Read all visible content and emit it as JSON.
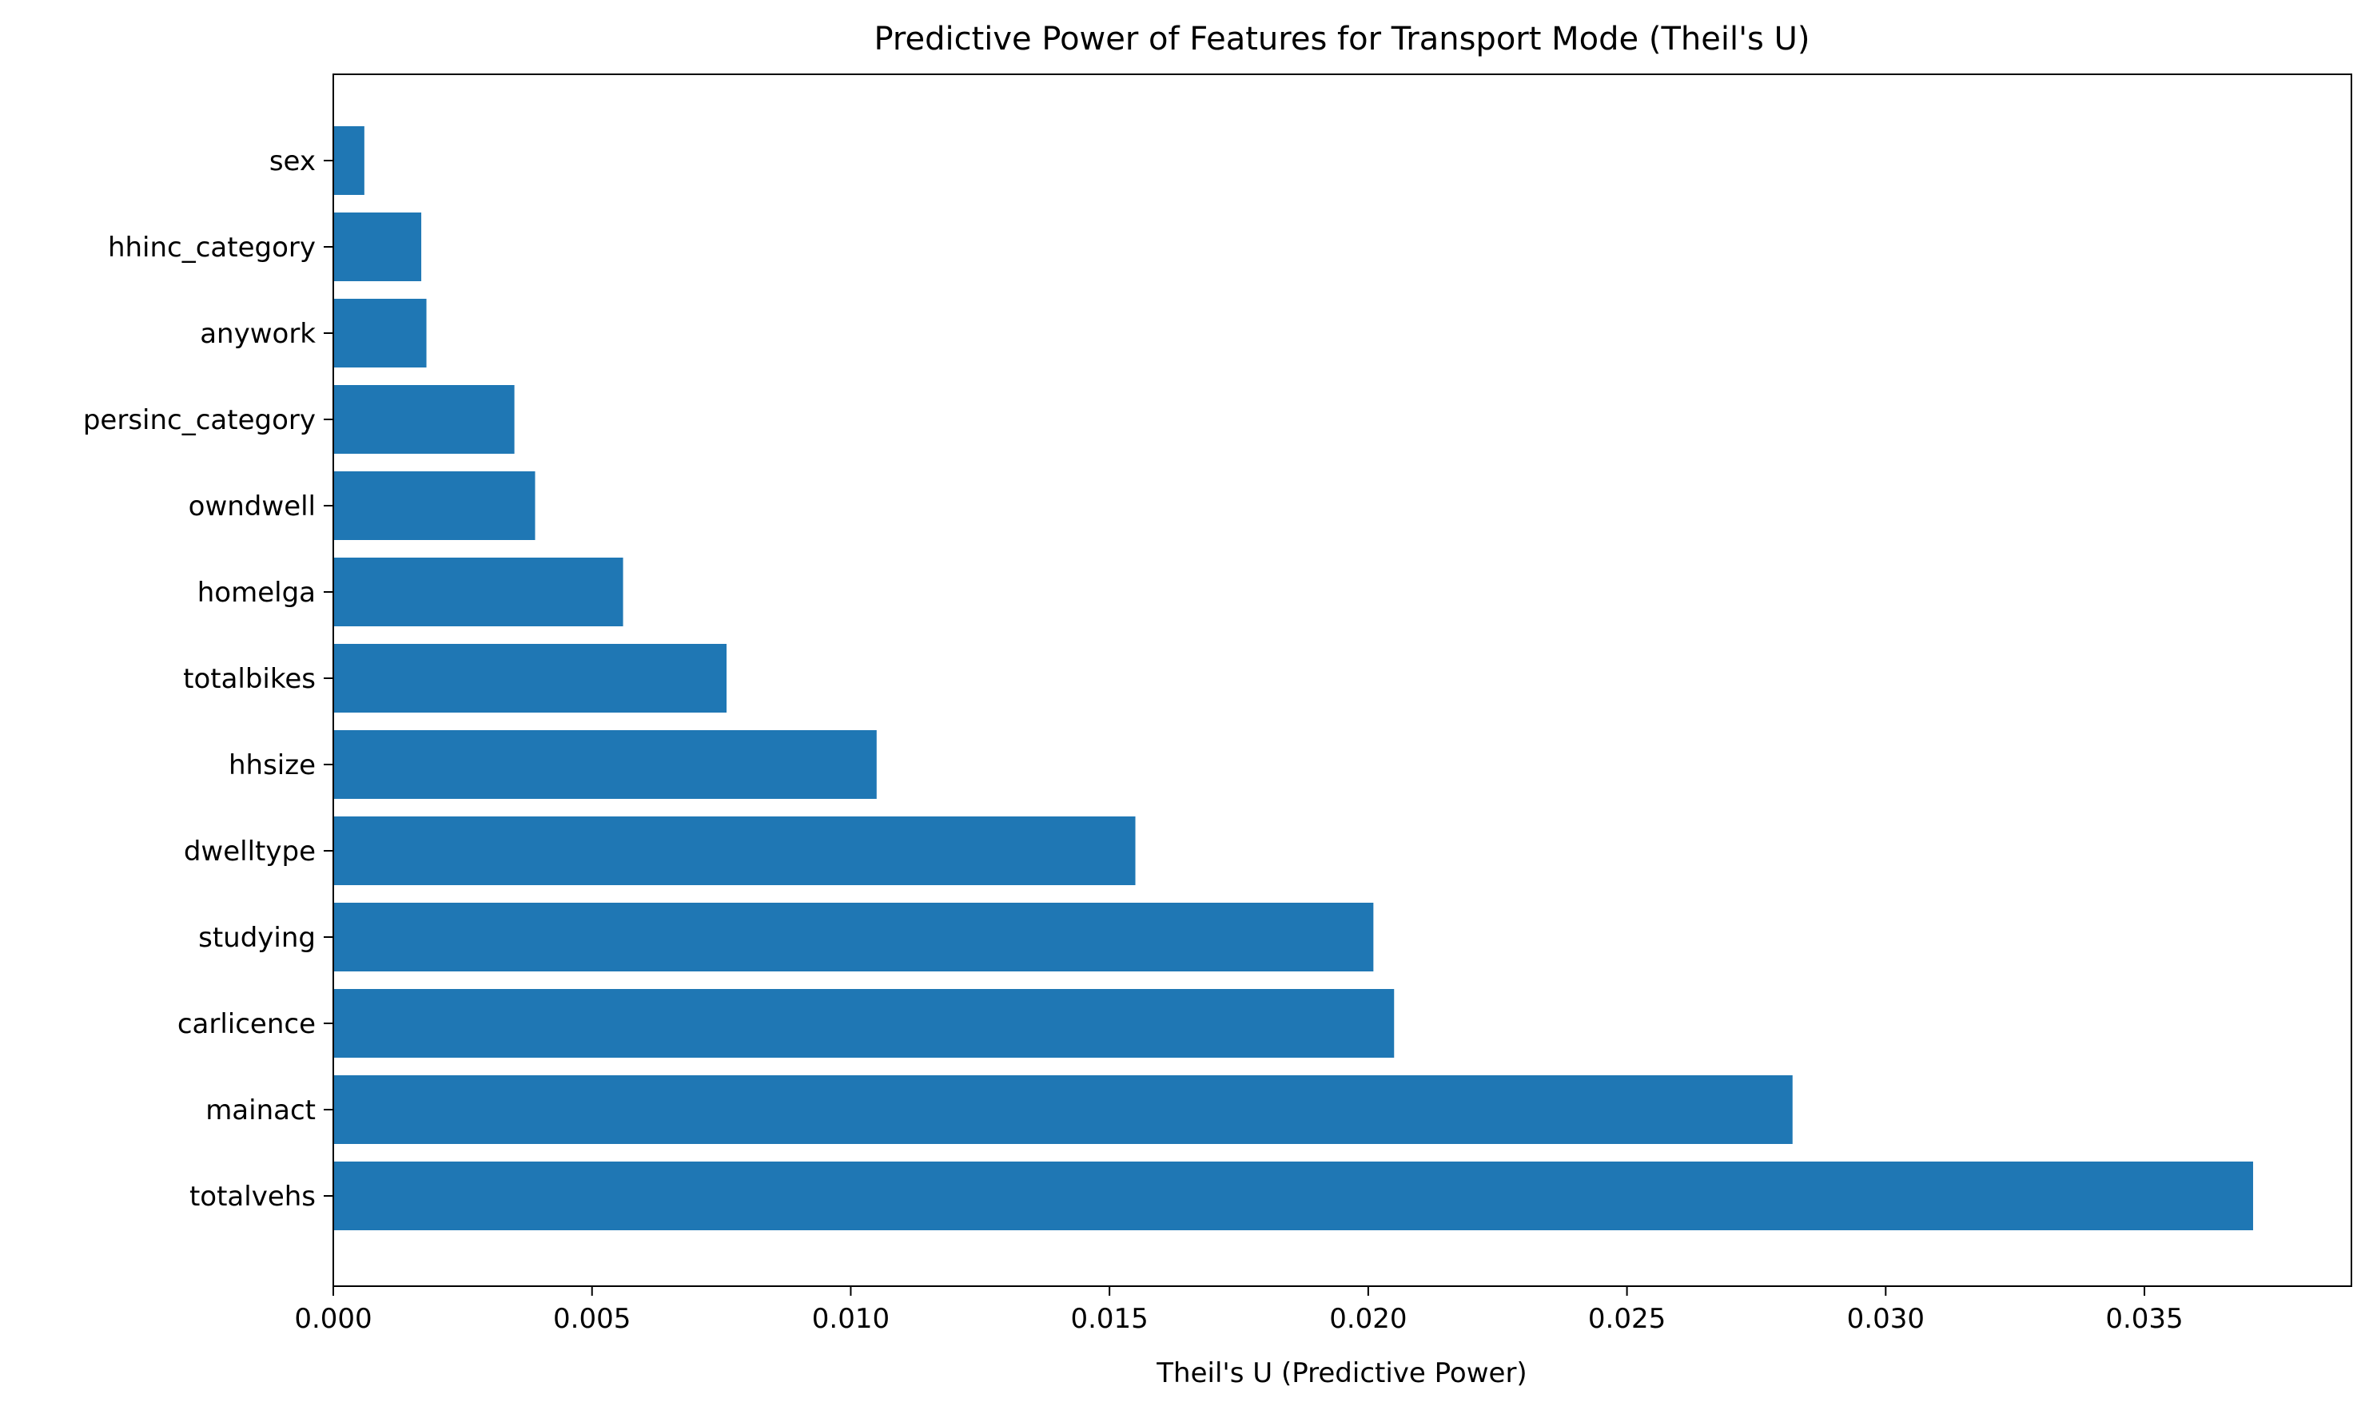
{
  "chart_data": {
    "type": "bar",
    "orientation": "horizontal",
    "title": "Predictive Power of Features for Transport Mode (Theil's U)",
    "xlabel": "Theil's U (Predictive Power)",
    "ylabel": "",
    "categories": [
      "totalvehs",
      "mainact",
      "carlicence",
      "studying",
      "dwelltype",
      "hhsize",
      "totalbikes",
      "homelga",
      "owndwell",
      "persinc_category",
      "anywork",
      "hhinc_category",
      "sex"
    ],
    "values": [
      0.0371,
      0.0282,
      0.0205,
      0.0201,
      0.0155,
      0.0105,
      0.0076,
      0.0056,
      0.0039,
      0.0035,
      0.0018,
      0.0017,
      0.0006
    ],
    "xlim": [
      0,
      0.039
    ],
    "xticks": [
      0.0,
      0.005,
      0.01,
      0.015,
      0.02,
      0.025,
      0.03,
      0.035
    ],
    "xtick_labels": [
      "0.000",
      "0.005",
      "0.010",
      "0.015",
      "0.020",
      "0.025",
      "0.030",
      "0.035"
    ],
    "bar_color": "#1f77b4",
    "grid": false,
    "legend": "none"
  }
}
